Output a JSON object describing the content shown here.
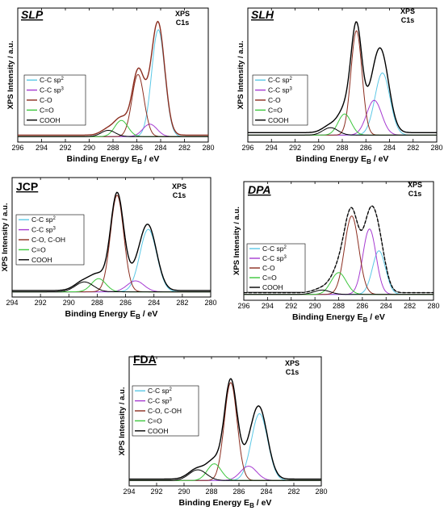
{
  "figure": {
    "common": {
      "xlabel": "Binding Energy",
      "xlabel_symbol": "E",
      "xlabel_sub": "B",
      "xlabel_unit": " / eV",
      "ylabel": "XPS Intensity / a.u.",
      "region_lines": [
        "XPS",
        "C1s"
      ]
    }
  },
  "chart_data": [
    {
      "id": "SLP",
      "type": "line",
      "title": "SLP",
      "title_style": "italic-underline",
      "xlim": [
        296,
        280
      ],
      "xticks": [
        296,
        294,
        292,
        290,
        288,
        286,
        284,
        282,
        280
      ],
      "reversed_x": true,
      "xlabel": "Binding Energy E_B / eV",
      "ylabel": "XPS Intensity / a.u.",
      "baseline": 0.03,
      "legend": [
        {
          "label": "C-C sp",
          "sup": "2",
          "color": "#5bc8e6"
        },
        {
          "label": "C-C sp",
          "sup": "3",
          "color": "#a63bd1"
        },
        {
          "label": "C-O",
          "sup": "",
          "color": "#8b2d1f"
        },
        {
          "label": "C=O",
          "sup": "",
          "color": "#3cc63c"
        },
        {
          "label": "COOH",
          "sup": "",
          "color": "#000000"
        }
      ],
      "peaks": [
        {
          "name": "C-C sp2",
          "center": 284.2,
          "height": 0.86,
          "fwhm": 1.3,
          "color": "#5bc8e6"
        },
        {
          "name": "C-C sp3",
          "center": 284.9,
          "height": 0.1,
          "fwhm": 1.4,
          "color": "#a63bd1"
        },
        {
          "name": "C-O",
          "center": 285.9,
          "height": 0.5,
          "fwhm": 1.2,
          "color": "#8b2d1f"
        },
        {
          "name": "C=O",
          "center": 287.3,
          "height": 0.13,
          "fwhm": 1.3,
          "color": "#3cc63c"
        },
        {
          "name": "COOH",
          "center": 288.4,
          "height": 0.05,
          "fwhm": 1.4,
          "color": "#000000"
        }
      ],
      "envelope_color": "#8b2d1f"
    },
    {
      "id": "SLH",
      "type": "line",
      "title": "SLH",
      "title_style": "italic-underline",
      "xlim": [
        296,
        280
      ],
      "xticks": [
        296,
        294,
        292,
        290,
        288,
        286,
        284,
        282,
        280
      ],
      "reversed_x": true,
      "xlabel": "Binding Energy E_B / eV",
      "ylabel": "XPS Intensity / a.u.",
      "baseline": 0.05,
      "legend": [
        {
          "label": "C-C sp",
          "sup": "2",
          "color": "#5bc8e6"
        },
        {
          "label": "C-C sp",
          "sup": "3",
          "color": "#a63bd1"
        },
        {
          "label": "C-O",
          "sup": "",
          "color": "#8b2d1f"
        },
        {
          "label": "C=O",
          "sup": "",
          "color": "#3cc63c"
        },
        {
          "label": "COOH",
          "sup": "",
          "color": "#000000"
        }
      ],
      "peaks": [
        {
          "name": "C-C sp2",
          "center": 284.6,
          "height": 0.5,
          "fwhm": 1.5,
          "color": "#5bc8e6"
        },
        {
          "name": "C-C sp3",
          "center": 285.3,
          "height": 0.28,
          "fwhm": 1.5,
          "color": "#a63bd1"
        },
        {
          "name": "C-O",
          "center": 286.8,
          "height": 0.84,
          "fwhm": 1.1,
          "color": "#8b2d1f"
        },
        {
          "name": "C=O",
          "center": 287.8,
          "height": 0.17,
          "fwhm": 1.3,
          "color": "#3cc63c"
        },
        {
          "name": "COOH",
          "center": 289.0,
          "height": 0.06,
          "fwhm": 1.5,
          "color": "#000000"
        }
      ],
      "envelope_color": "#000000"
    },
    {
      "id": "JCP",
      "type": "line",
      "title": "JCP",
      "title_style": "upright-underline",
      "xlim": [
        294,
        280
      ],
      "xticks": [
        294,
        292,
        290,
        288,
        286,
        284,
        282,
        280
      ],
      "reversed_x": true,
      "xlabel": "Binding Energy E_B / eV",
      "ylabel": "XPS Intensity / a.u.",
      "baseline": 0.03,
      "legend": [
        {
          "label": "C-C sp",
          "sup": "2",
          "color": "#5bc8e6"
        },
        {
          "label": "C-C sp",
          "sup": "3",
          "color": "#a63bd1"
        },
        {
          "label": "C-O, C-OH",
          "sup": "",
          "color": "#8b2d1f"
        },
        {
          "label": "C=O",
          "sup": "",
          "color": "#3cc63c"
        },
        {
          "label": "COOH",
          "sup": "",
          "color": "#000000"
        }
      ],
      "peaks": [
        {
          "name": "C-C sp2",
          "center": 284.4,
          "height": 0.57,
          "fwhm": 1.4,
          "color": "#5bc8e6"
        },
        {
          "name": "C-C sp3",
          "center": 285.3,
          "height": 0.1,
          "fwhm": 1.4,
          "color": "#a63bd1"
        },
        {
          "name": "C-O, C-OH",
          "center": 286.6,
          "height": 0.88,
          "fwhm": 1.1,
          "color": "#8b2d1f"
        },
        {
          "name": "C=O",
          "center": 287.9,
          "height": 0.12,
          "fwhm": 1.2,
          "color": "#3cc63c"
        },
        {
          "name": "COOH",
          "center": 288.9,
          "height": 0.09,
          "fwhm": 1.5,
          "color": "#000000"
        }
      ],
      "envelope_color": "#000000"
    },
    {
      "id": "DPA",
      "type": "line",
      "title": "DPA",
      "title_style": "italic-underline",
      "xlim": [
        296,
        280
      ],
      "xticks": [
        296,
        294,
        292,
        290,
        288,
        286,
        284,
        282,
        280
      ],
      "reversed_x": true,
      "xlabel": "Binding Energy E_B / eV",
      "ylabel": "XPS Intensity / a.u.",
      "baseline": 0.04,
      "legend": [
        {
          "label": "C-C sp",
          "sup": "2",
          "color": "#5bc8e6"
        },
        {
          "label": "C-C sp",
          "sup": "3",
          "color": "#a63bd1"
        },
        {
          "label": "C-O",
          "sup": "",
          "color": "#8b2d1f"
        },
        {
          "label": "C=O",
          "sup": "",
          "color": "#3cc63c"
        },
        {
          "label": "COOH",
          "sup": "",
          "color": "#000000"
        }
      ],
      "peaks": [
        {
          "name": "C-C sp2",
          "center": 284.6,
          "height": 0.4,
          "fwhm": 1.3,
          "color": "#5bc8e6"
        },
        {
          "name": "C-C sp3",
          "center": 285.4,
          "height": 0.6,
          "fwhm": 1.3,
          "color": "#a63bd1"
        },
        {
          "name": "C-O",
          "center": 286.9,
          "height": 0.72,
          "fwhm": 1.4,
          "color": "#8b2d1f"
        },
        {
          "name": "C=O",
          "center": 288.0,
          "height": 0.2,
          "fwhm": 1.5,
          "color": "#3cc63c"
        },
        {
          "name": "COOH",
          "center": 289.4,
          "height": 0.04,
          "fwhm": 1.6,
          "color": "#000000"
        }
      ],
      "envelope_color": "#000000",
      "envelope_dashed": true
    },
    {
      "id": "FDA",
      "type": "line",
      "title": "FDA",
      "title_style": "upright-underline",
      "xlim": [
        294,
        280
      ],
      "xticks": [
        294,
        292,
        290,
        288,
        286,
        284,
        282,
        280
      ],
      "reversed_x": true,
      "xlabel": "Binding Energy E_B / eV",
      "ylabel": "XPS Intensity / a.u.",
      "baseline": 0.03,
      "legend": [
        {
          "label": "C-C sp",
          "sup": "2",
          "color": "#5bc8e6"
        },
        {
          "label": "C-C sp",
          "sup": "3",
          "color": "#a63bd1"
        },
        {
          "label": "C-O, C-OH",
          "sup": "",
          "color": "#8b2d1f"
        },
        {
          "label": "C=O",
          "sup": "",
          "color": "#3cc63c"
        },
        {
          "label": "COOH",
          "sup": "",
          "color": "#000000"
        }
      ],
      "peaks": [
        {
          "name": "C-C sp2",
          "center": 284.5,
          "height": 0.56,
          "fwhm": 1.4,
          "color": "#5bc8e6"
        },
        {
          "name": "C-C sp3",
          "center": 285.3,
          "height": 0.12,
          "fwhm": 1.4,
          "color": "#a63bd1"
        },
        {
          "name": "C-O, C-OH",
          "center": 286.6,
          "height": 0.82,
          "fwhm": 1.1,
          "color": "#8b2d1f"
        },
        {
          "name": "C=O",
          "center": 287.8,
          "height": 0.14,
          "fwhm": 1.2,
          "color": "#3cc63c"
        },
        {
          "name": "COOH",
          "center": 289.0,
          "height": 0.09,
          "fwhm": 1.5,
          "color": "#000000"
        }
      ],
      "envelope_color": "#000000"
    }
  ]
}
